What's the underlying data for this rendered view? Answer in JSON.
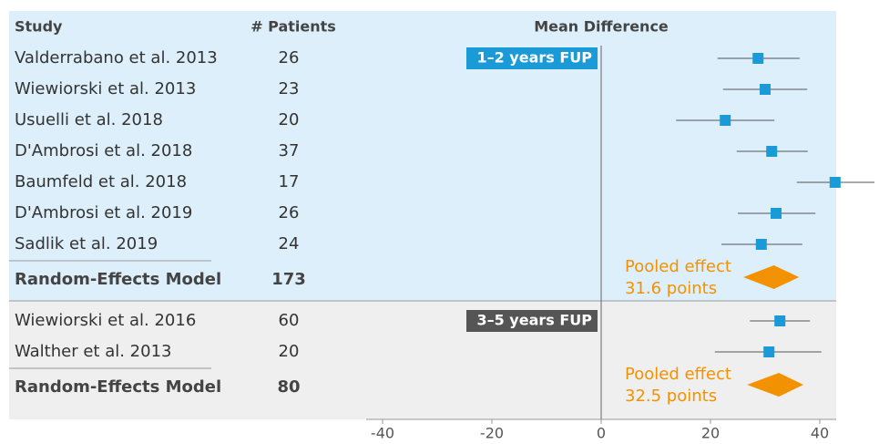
{
  "chart_data": {
    "type": "forest",
    "columns": [
      "Study",
      "# Patients",
      "Mean Difference"
    ],
    "xlim": [
      -43,
      43
    ],
    "xticks": [
      -40,
      -20,
      0,
      20,
      40
    ],
    "marker_color": "#1a9ad6",
    "pooled_color": "#f39200",
    "groups": [
      {
        "label": "1–2 years FUP",
        "color": "#ddeffa",
        "label_color": "#1a9ad6",
        "studies": [
          {
            "name": "Valderrabano et al. 2013",
            "patients": 26,
            "mean": 28.7,
            "lower": 21.3,
            "upper": 36.3
          },
          {
            "name": "Wiewiorski et al. 2013",
            "patients": 23,
            "mean": 30,
            "lower": 22.3,
            "upper": 37.7
          },
          {
            "name": "Usuelli et al. 2018",
            "patients": 20,
            "mean": 22.7,
            "lower": 13.7,
            "upper": 31.7
          },
          {
            "name": "D'Ambrosi et al. 2018",
            "patients": 37,
            "mean": 31.2,
            "lower": 24.8,
            "upper": 37.8
          },
          {
            "name": "Baumfeld et al. 2018",
            "patients": 17,
            "mean": 42.8,
            "lower": 35.8,
            "upper": 50
          },
          {
            "name": "D'Ambrosi et al. 2019",
            "patients": 26,
            "mean": 32,
            "lower": 25,
            "upper": 39.2
          },
          {
            "name": "Sadlik et al. 2019",
            "patients": 24,
            "mean": 29.3,
            "lower": 22,
            "upper": 36.8
          }
        ],
        "pooled": {
          "name": "Random-Effects Model",
          "patients": 173,
          "label": "Pooled effect",
          "value": 31.6,
          "value_label": "31.6 points",
          "lower": 26,
          "upper": 36.2
        }
      },
      {
        "label": "3–5 years FUP",
        "color": "#efefef",
        "label_color": "#555555",
        "studies": [
          {
            "name": "Wiewiorski et al. 2016",
            "patients": 60,
            "mean": 32.7,
            "lower": 27.2,
            "upper": 38.2
          },
          {
            "name": "Walther et al. 2013",
            "patients": 20,
            "mean": 30.7,
            "lower": 20.8,
            "upper": 40.3
          }
        ],
        "pooled": {
          "name": "Random-Effects Model",
          "patients": 80,
          "label": "Pooled effect",
          "value": 32.5,
          "value_label": "32.5 points",
          "lower": 26.7,
          "upper": 37
        }
      }
    ]
  }
}
